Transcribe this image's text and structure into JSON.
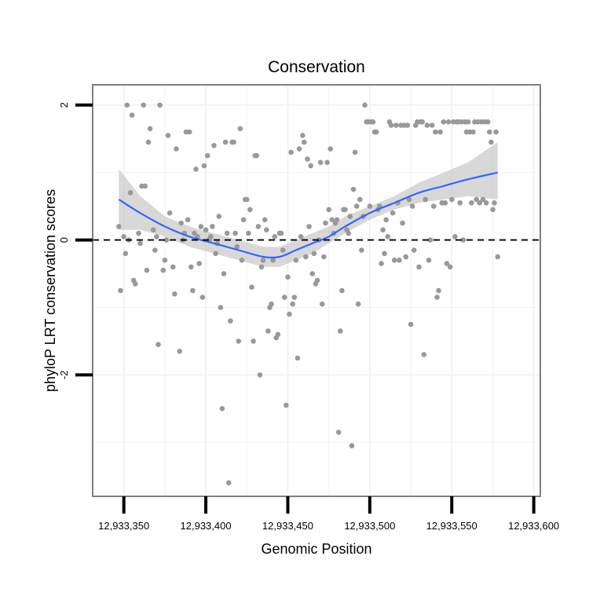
{
  "colors": {
    "points": "#999999",
    "smooth_line": "#3366FF",
    "ribbon": "#BEBEBE",
    "grid": "#F2F2F2",
    "frame": "#7F7F7F",
    "reference_line": "#000000"
  },
  "chart_data": {
    "type": "scatter",
    "title": "Conservation",
    "xlabel": "Genomic Position",
    "ylabel": "phyloP LRT conservation scores",
    "xlim": [
      12933331,
      12933604
    ],
    "ylim": [
      -3.8,
      2.3
    ],
    "x_ticks": [
      12933350,
      12933400,
      12933450,
      12933500,
      12933550,
      12933600
    ],
    "x_tick_labels": [
      "12,933,350",
      "12,933,400",
      "12,933,450",
      "12,933,500",
      "12,933,550",
      "12,933,600"
    ],
    "y_ticks": [
      -2,
      0,
      2
    ],
    "y_tick_labels": [
      "-2",
      "0",
      "2"
    ],
    "grid": true,
    "reference_line": {
      "y": 0,
      "style": "dashed"
    },
    "points": [
      [
        12933347,
        0.2
      ],
      [
        12933348,
        -0.75
      ],
      [
        12933350,
        0.05
      ],
      [
        12933351,
        -0.2
      ],
      [
        12933352,
        2.0
      ],
      [
        12933353,
        0.0
      ],
      [
        12933354,
        0.7
      ],
      [
        12933355,
        1.85
      ],
      [
        12933356,
        -0.6
      ],
      [
        12933357,
        -0.65
      ],
      [
        12933359,
        0.1
      ],
      [
        12933360,
        -0.05
      ],
      [
        12933361,
        0.8
      ],
      [
        12933362,
        2.0
      ],
      [
        12933363,
        0.8
      ],
      [
        12933364,
        -0.45
      ],
      [
        12933365,
        1.45
      ],
      [
        12933366,
        1.65
      ],
      [
        12933368,
        0.15
      ],
      [
        12933369,
        -0.15
      ],
      [
        12933370,
        0.05
      ],
      [
        12933371,
        -1.55
      ],
      [
        12933372,
        2.0
      ],
      [
        12933374,
        -0.45
      ],
      [
        12933375,
        -0.3
      ],
      [
        12933376,
        0.0
      ],
      [
        12933377,
        1.55
      ],
      [
        12933378,
        0.4
      ],
      [
        12933380,
        -0.4
      ],
      [
        12933381,
        -0.8
      ],
      [
        12933382,
        1.35
      ],
      [
        12933384,
        -1.65
      ],
      [
        12933385,
        0.25
      ],
      [
        12933386,
        0.0
      ],
      [
        12933387,
        0.1
      ],
      [
        12933388,
        1.6
      ],
      [
        12933389,
        0.3
      ],
      [
        12933390,
        1.6
      ],
      [
        12933391,
        -0.4
      ],
      [
        12933392,
        -0.75
      ],
      [
        12933393,
        0.1
      ],
      [
        12933394,
        1.05
      ],
      [
        12933395,
        0.05
      ],
      [
        12933396,
        -0.35
      ],
      [
        12933397,
        0.2
      ],
      [
        12933398,
        -0.85
      ],
      [
        12933399,
        1.1
      ],
      [
        12933400,
        0.15
      ],
      [
        12933401,
        1.25
      ],
      [
        12933402,
        0.0
      ],
      [
        12933403,
        0.05
      ],
      [
        12933404,
        0.2
      ],
      [
        12933405,
        1.4
      ],
      [
        12933406,
        -0.2
      ],
      [
        12933407,
        -0.05
      ],
      [
        12933408,
        0.35
      ],
      [
        12933409,
        -1.0
      ],
      [
        12933410,
        -2.5
      ],
      [
        12933411,
        -0.5
      ],
      [
        12933412,
        1.45
      ],
      [
        12933413,
        0.1
      ],
      [
        12933414,
        -3.6
      ],
      [
        12933415,
        -1.2
      ],
      [
        12933416,
        1.45
      ],
      [
        12933417,
        1.45
      ],
      [
        12933418,
        0.1
      ],
      [
        12933419,
        -0.1
      ],
      [
        12933420,
        -1.5
      ],
      [
        12933421,
        1.65
      ],
      [
        12933422,
        -0.3
      ],
      [
        12933423,
        0.3
      ],
      [
        12933424,
        0.6
      ],
      [
        12933425,
        0.6
      ],
      [
        12933426,
        0.1
      ],
      [
        12933427,
        0.45
      ],
      [
        12933428,
        -0.7
      ],
      [
        12933429,
        -1.5
      ],
      [
        12933430,
        1.25
      ],
      [
        12933431,
        1.25
      ],
      [
        12933432,
        0.2
      ],
      [
        12933433,
        -2.0
      ],
      [
        12933434,
        -0.4
      ],
      [
        12933435,
        -0.3
      ],
      [
        12933436,
        0.3
      ],
      [
        12933437,
        0.15
      ],
      [
        12933438,
        -1.35
      ],
      [
        12933439,
        -1.0
      ],
      [
        12933440,
        -0.95
      ],
      [
        12933441,
        -0.3
      ],
      [
        12933442,
        0.05
      ],
      [
        12933443,
        -1.45
      ],
      [
        12933444,
        -1.4
      ],
      [
        12933445,
        0.1
      ],
      [
        12933446,
        0.1
      ],
      [
        12933447,
        -0.15
      ],
      [
        12933448,
        -0.85
      ],
      [
        12933449,
        -2.45
      ],
      [
        12933450,
        -0.55
      ],
      [
        12933451,
        -1.1
      ],
      [
        12933452,
        1.3
      ],
      [
        12933453,
        -0.95
      ],
      [
        12933454,
        -0.85
      ],
      [
        12933455,
        -0.3
      ],
      [
        12933456,
        -1.75
      ],
      [
        12933457,
        1.35
      ],
      [
        12933458,
        0.05
      ],
      [
        12933459,
        1.55
      ],
      [
        12933460,
        1.45
      ],
      [
        12933461,
        -0.25
      ],
      [
        12933462,
        1.2
      ],
      [
        12933463,
        0.2
      ],
      [
        12933464,
        1.1
      ],
      [
        12933465,
        -0.5
      ],
      [
        12933466,
        -0.2
      ],
      [
        12933467,
        -0.65
      ],
      [
        12933468,
        -0.6
      ],
      [
        12933469,
        0.0
      ],
      [
        12933470,
        1.15
      ],
      [
        12933471,
        -0.95
      ],
      [
        12933472,
        -0.25
      ],
      [
        12933473,
        0.25
      ],
      [
        12933474,
        1.15
      ],
      [
        12933475,
        0.45
      ],
      [
        12933476,
        1.35
      ],
      [
        12933477,
        0.3
      ],
      [
        12933478,
        0.1
      ],
      [
        12933479,
        0.25
      ],
      [
        12933480,
        0.3
      ],
      [
        12933481,
        -2.85
      ],
      [
        12933482,
        -1.35
      ],
      [
        12933483,
        -0.75
      ],
      [
        12933484,
        0.45
      ],
      [
        12933485,
        0.45
      ],
      [
        12933486,
        0.15
      ],
      [
        12933487,
        0.1
      ],
      [
        12933488,
        0.35
      ],
      [
        12933489,
        -3.05
      ],
      [
        12933490,
        0.75
      ],
      [
        12933491,
        1.3
      ],
      [
        12933492,
        0.5
      ],
      [
        12933493,
        -0.95
      ],
      [
        12933494,
        0.6
      ],
      [
        12933495,
        -0.15
      ],
      [
        12933496,
        0.35
      ],
      [
        12933497,
        2.0
      ],
      [
        12933498,
        1.75
      ],
      [
        12933499,
        1.75
      ],
      [
        12933500,
        0.5
      ],
      [
        12933501,
        1.75
      ],
      [
        12933502,
        1.75
      ],
      [
        12933503,
        1.6
      ],
      [
        12933504,
        1.6
      ],
      [
        12933505,
        0.45
      ],
      [
        12933506,
        0.5
      ],
      [
        12933507,
        -0.35
      ],
      [
        12933508,
        0.15
      ],
      [
        12933509,
        -0.2
      ],
      [
        12933510,
        0.3
      ],
      [
        12933511,
        0.05
      ],
      [
        12933512,
        1.75
      ],
      [
        12933513,
        1.7
      ],
      [
        12933514,
        0.4
      ],
      [
        12933515,
        -0.3
      ],
      [
        12933516,
        1.7
      ],
      [
        12933517,
        0.55
      ],
      [
        12933518,
        -0.3
      ],
      [
        12933519,
        1.7
      ],
      [
        12933520,
        0.25
      ],
      [
        12933521,
        1.7
      ],
      [
        12933522,
        -0.25
      ],
      [
        12933523,
        1.7
      ],
      [
        12933524,
        0.6
      ],
      [
        12933525,
        -1.25
      ],
      [
        12933526,
        0.5
      ],
      [
        12933527,
        -0.15
      ],
      [
        12933528,
        1.7
      ],
      [
        12933529,
        1.75
      ],
      [
        12933530,
        -0.4
      ],
      [
        12933531,
        1.75
      ],
      [
        12933532,
        1.75
      ],
      [
        12933533,
        -1.7
      ],
      [
        12933534,
        0.6
      ],
      [
        12933535,
        1.7
      ],
      [
        12933536,
        -0.3
      ],
      [
        12933537,
        0.0
      ],
      [
        12933538,
        1.7
      ],
      [
        12933539,
        0.5
      ],
      [
        12933540,
        1.6
      ],
      [
        12933541,
        -0.85
      ],
      [
        12933542,
        -0.75
      ],
      [
        12933543,
        1.6
      ],
      [
        12933544,
        0.55
      ],
      [
        12933545,
        1.75
      ],
      [
        12933546,
        0.55
      ],
      [
        12933547,
        -0.35
      ],
      [
        12933548,
        1.75
      ],
      [
        12933549,
        -0.4
      ],
      [
        12933550,
        0.6
      ],
      [
        12933551,
        1.75
      ],
      [
        12933552,
        0.05
      ],
      [
        12933553,
        1.75
      ],
      [
        12933554,
        1.75
      ],
      [
        12933555,
        0.55
      ],
      [
        12933556,
        1.75
      ],
      [
        12933557,
        0.0
      ],
      [
        12933558,
        1.75
      ],
      [
        12933559,
        1.6
      ],
      [
        12933560,
        1.75
      ],
      [
        12933561,
        1.6
      ],
      [
        12933562,
        0.55
      ],
      [
        12933563,
        1.6
      ],
      [
        12933564,
        1.75
      ],
      [
        12933565,
        0.6
      ],
      [
        12933566,
        1.75
      ],
      [
        12933567,
        0.55
      ],
      [
        12933568,
        1.75
      ],
      [
        12933569,
        0.6
      ],
      [
        12933570,
        1.75
      ],
      [
        12933571,
        0.55
      ],
      [
        12933572,
        1.75
      ],
      [
        12933573,
        1.6
      ],
      [
        12933574,
        1.45
      ],
      [
        12933575,
        0.45
      ],
      [
        12933576,
        0.55
      ],
      [
        12933577,
        1.6
      ],
      [
        12933578,
        -0.25
      ]
    ],
    "smooth": {
      "method": "loess",
      "x": [
        12933347,
        12933360,
        12933375,
        12933390,
        12933405,
        12933420,
        12933435,
        12933445,
        12933455,
        12933465,
        12933475,
        12933485,
        12933500,
        12933515,
        12933530,
        12933545,
        12933560,
        12933578
      ],
      "y": [
        0.6,
        0.4,
        0.2,
        0.05,
        -0.05,
        -0.15,
        -0.25,
        -0.25,
        -0.15,
        -0.05,
        0.05,
        0.2,
        0.4,
        0.55,
        0.7,
        0.8,
        0.9,
        1.0
      ],
      "lower": [
        0.15,
        0.15,
        0.05,
        -0.1,
        -0.2,
        -0.3,
        -0.4,
        -0.4,
        -0.3,
        -0.2,
        -0.05,
        0.1,
        0.3,
        0.45,
        0.55,
        0.6,
        0.65,
        0.6
      ],
      "upper": [
        1.05,
        0.65,
        0.35,
        0.2,
        0.1,
        0.0,
        -0.1,
        -0.1,
        0.0,
        0.1,
        0.2,
        0.35,
        0.5,
        0.65,
        0.85,
        1.0,
        1.15,
        1.45
      ]
    }
  }
}
